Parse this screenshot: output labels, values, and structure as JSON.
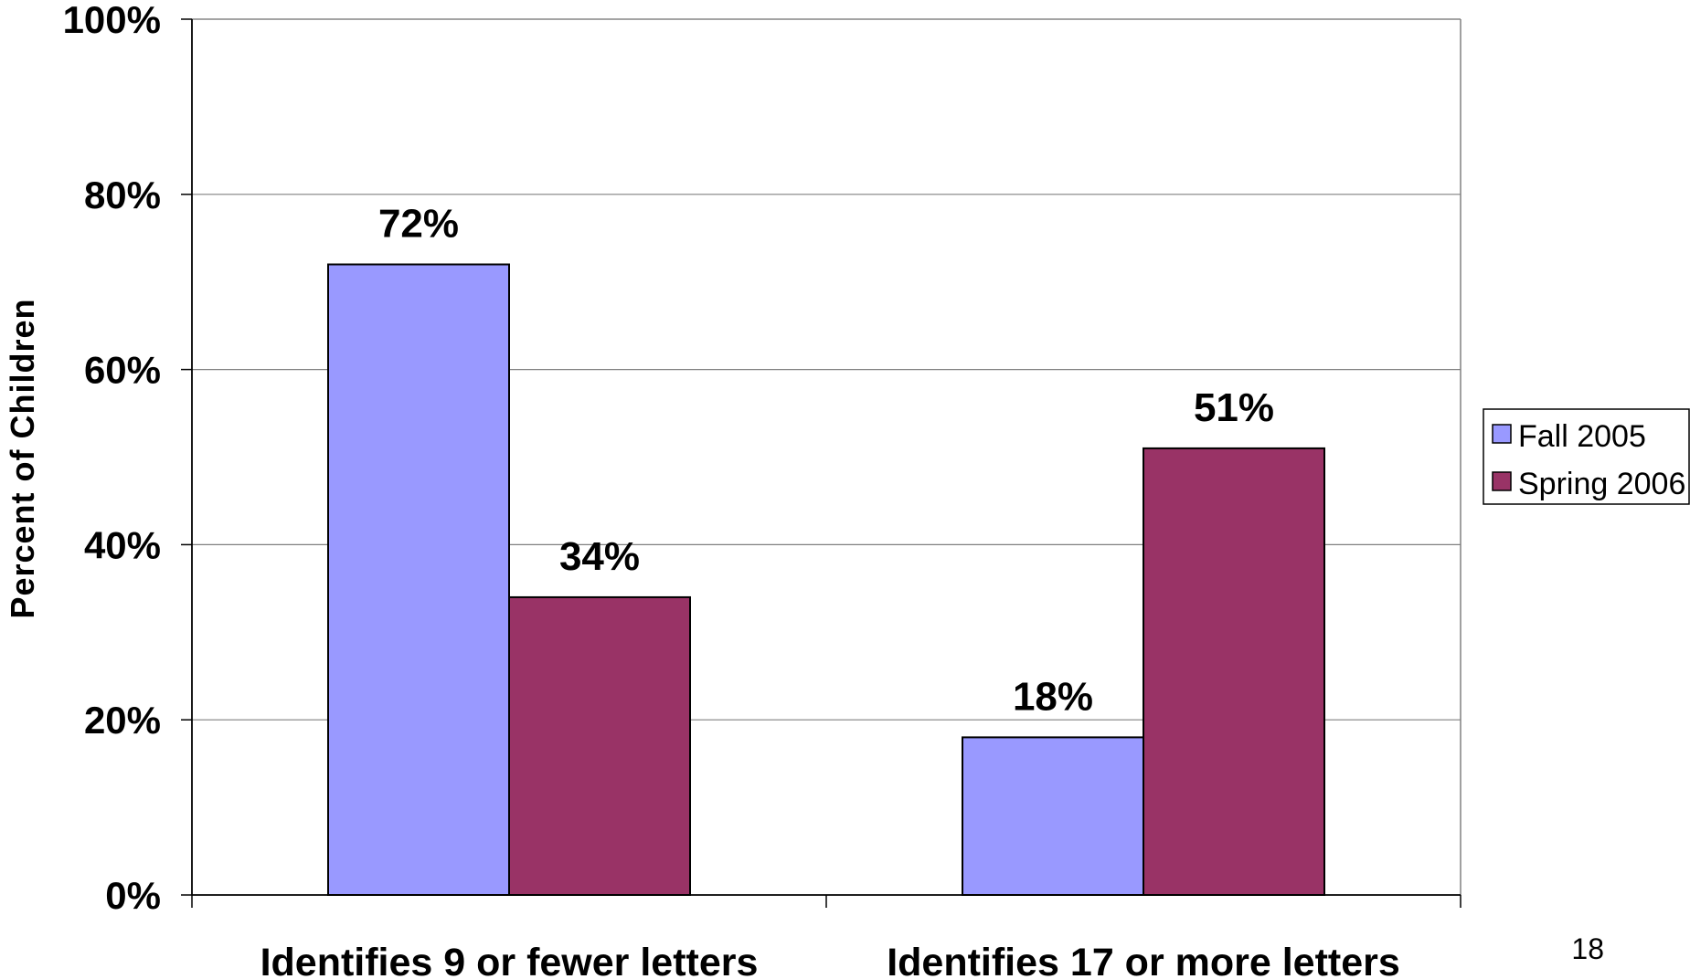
{
  "chart_data": {
    "type": "bar",
    "categories": [
      "Identifies 9 or fewer letters",
      "Identifies 17 or more letters"
    ],
    "series": [
      {
        "name": "Fall 2005",
        "values": [
          72,
          18
        ],
        "color": "#9999ff"
      },
      {
        "name": "Spring 2006",
        "values": [
          34,
          51
        ],
        "color": "#993366"
      }
    ],
    "data_labels": [
      [
        "72%",
        "18%"
      ],
      [
        "34%",
        "51%"
      ]
    ],
    "title": "",
    "xlabel": "",
    "ylabel": "Percent of Children",
    "ylim": [
      0,
      100
    ],
    "yticks": [
      "0%",
      "20%",
      "40%",
      "60%",
      "80%",
      "100%"
    ],
    "grid": true,
    "legend_position": "right"
  },
  "page_number": "18"
}
